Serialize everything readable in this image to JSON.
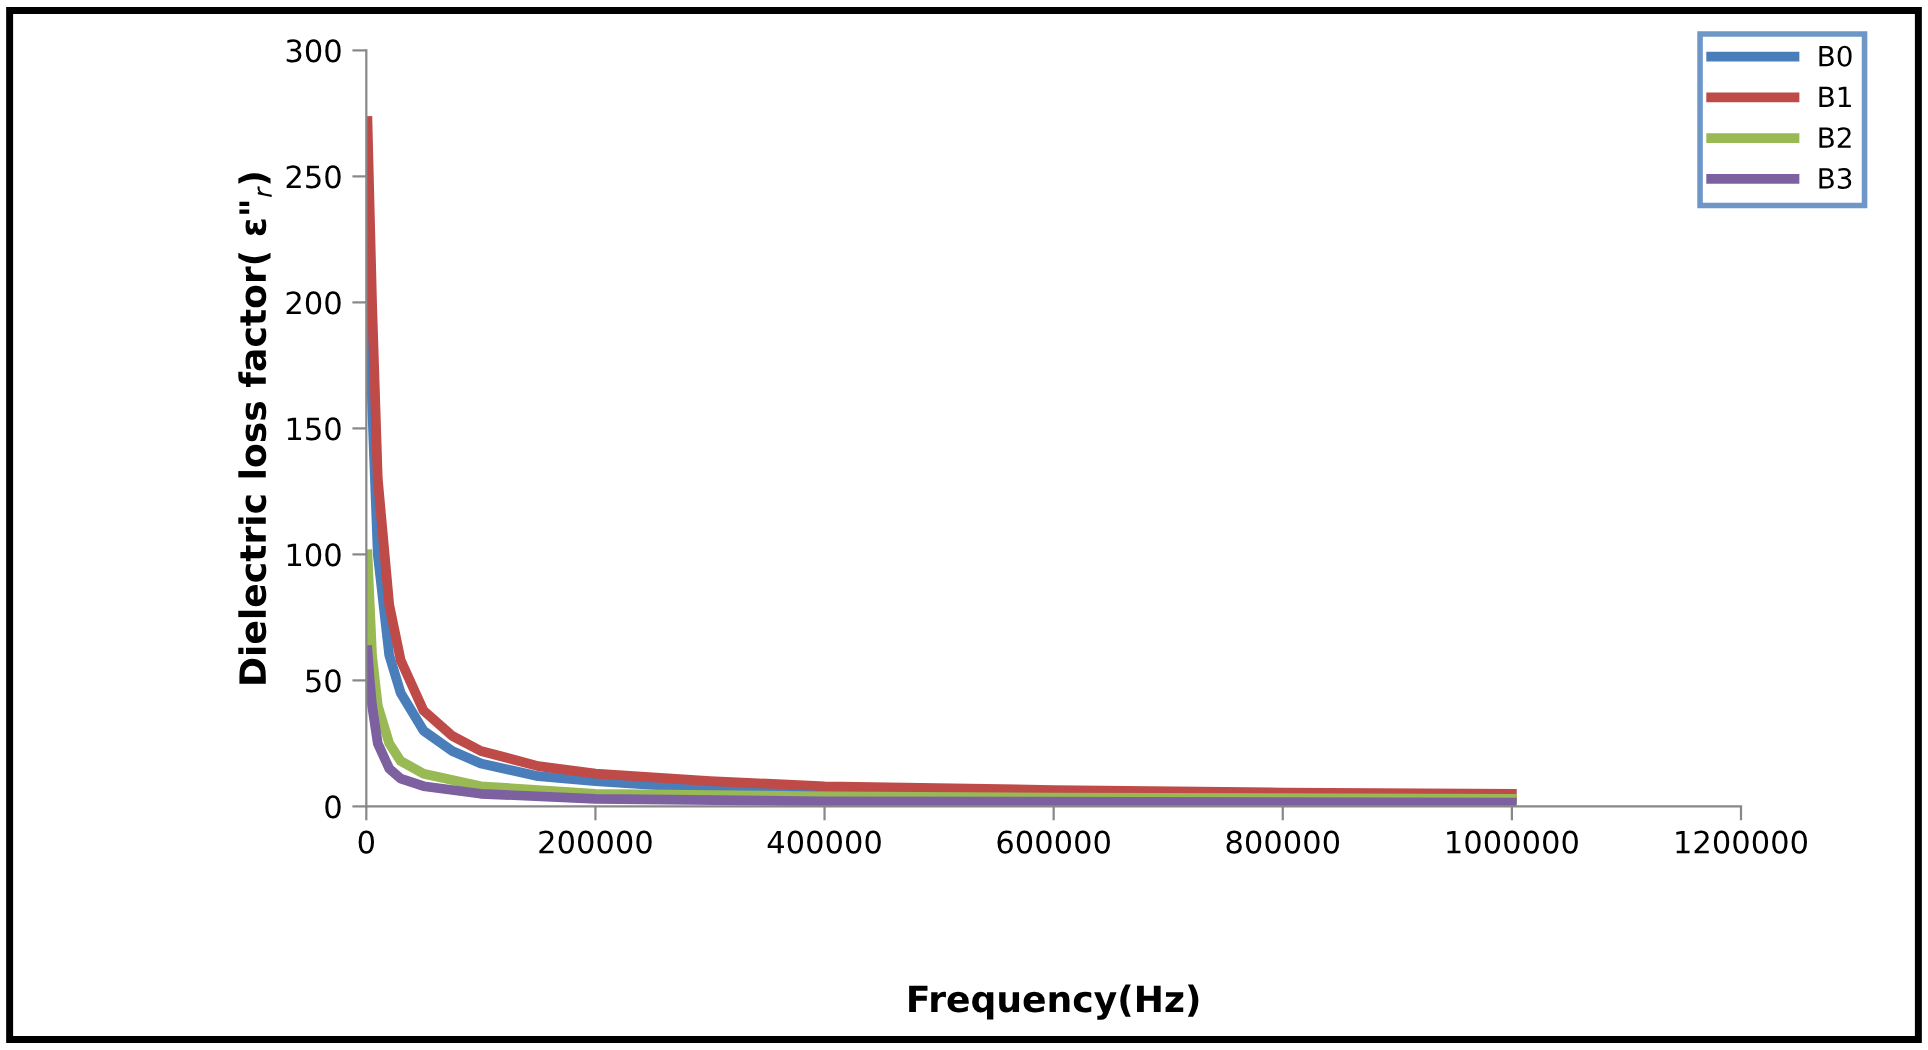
{
  "chart_data": {
    "type": "line",
    "xlabel": "Frequency(Hz)",
    "ylabel": "Dielectric loss factor( ε\"$_{r}$)",
    "xlim": [
      0,
      1200000
    ],
    "xticks": [
      0,
      200000,
      400000,
      600000,
      800000,
      1000000,
      1200000
    ],
    "ylim": [
      0,
      300
    ],
    "yticks": [
      0,
      50,
      100,
      150,
      200,
      250,
      300
    ],
    "grid": false,
    "legend": "top right",
    "marker": "none",
    "line_style": "solid",
    "series": [
      {
        "name": "B0",
        "color": "#4a7ebb",
        "x": [
          1000,
          5000,
          10000,
          20000,
          30000,
          50000,
          75000,
          100000,
          150000,
          200000,
          300000,
          400000,
          600000
        ],
        "values": [
          230,
          160,
          100,
          60,
          45,
          30,
          22,
          17,
          12,
          10,
          7,
          6,
          4.5
        ]
      },
      {
        "name": "B1",
        "color": "#be4b48",
        "x": [
          1000,
          5000,
          10000,
          20000,
          30000,
          50000,
          75000,
          100000,
          150000,
          200000,
          300000,
          400000,
          600000,
          800000,
          1000000
        ],
        "values": [
          272,
          200,
          130,
          80,
          58,
          38,
          28,
          22,
          16,
          13,
          10,
          8,
          6.5,
          5.5,
          5
        ]
      },
      {
        "name": "B2",
        "color": "#98b954",
        "x": [
          1000,
          3000,
          5000,
          10000,
          20000,
          30000,
          50000,
          100000,
          200000,
          400000,
          600000,
          1000000
        ],
        "values": [
          100,
          80,
          60,
          40,
          25,
          18,
          13,
          8,
          5,
          4,
          3.5,
          3
        ]
      },
      {
        "name": "B3",
        "color": "#7d60a0",
        "x": [
          1000,
          3000,
          5000,
          10000,
          20000,
          30000,
          50000,
          100000,
          200000,
          400000,
          1000000
        ],
        "values": [
          62,
          50,
          40,
          25,
          15,
          11,
          8,
          5,
          3,
          2,
          1.5
        ]
      }
    ]
  }
}
